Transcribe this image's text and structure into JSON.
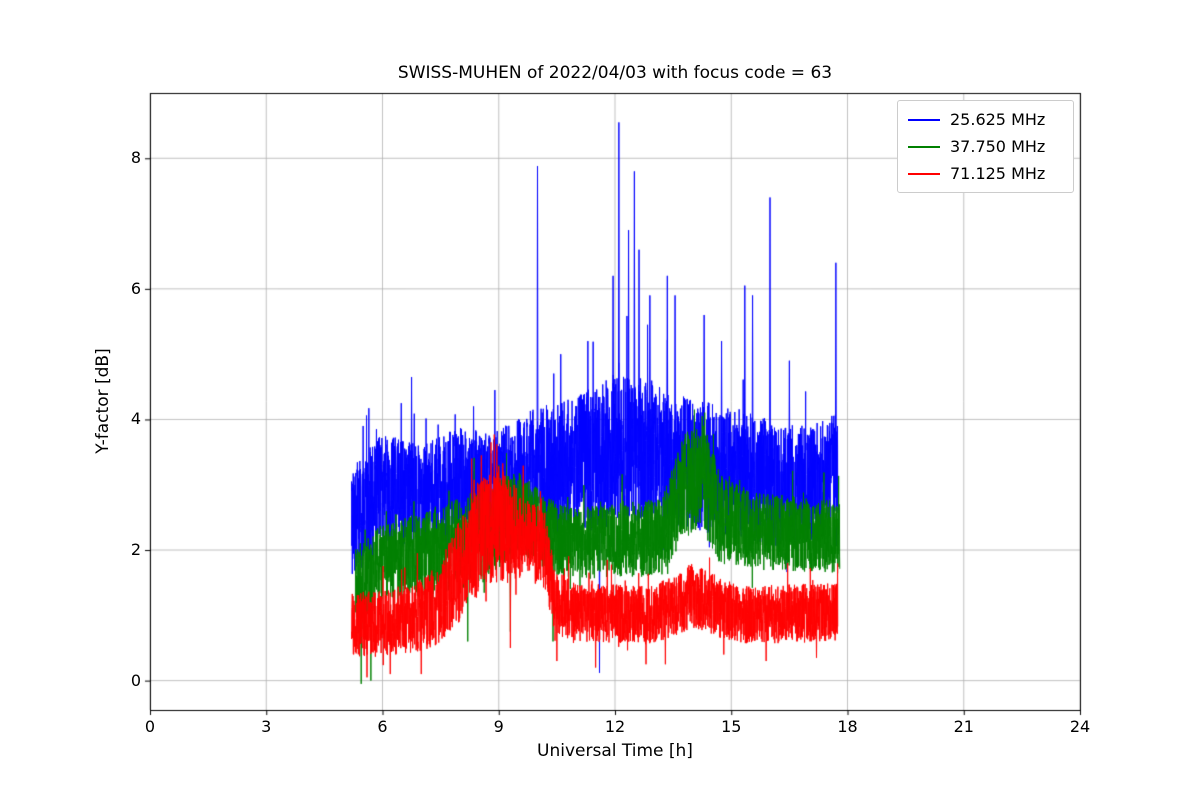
{
  "chart_data": {
    "type": "line",
    "title": "SWISS-MUHEN of 2022/04/03 with focus code = 63",
    "xlabel": "Universal Time [h]",
    "ylabel": "Y-factor [dB]",
    "xlim": [
      0,
      24
    ],
    "ylim": [
      -0.45,
      9.0
    ],
    "xticks": [
      0,
      3,
      6,
      9,
      12,
      15,
      18,
      21,
      24
    ],
    "yticks": [
      0,
      2,
      4,
      6,
      8
    ],
    "grid": true,
    "grid_color": "#b0b0b0",
    "background": "#ffffff",
    "legend": {
      "position": "upper right"
    },
    "series": [
      {
        "name": "25.625 MHz",
        "color": "#0000ff",
        "x_range": [
          5.2,
          17.75
        ],
        "envelope": [
          {
            "x": 5.2,
            "mean": 2.4,
            "spread": 0.85
          },
          {
            "x": 6.0,
            "mean": 2.9,
            "spread": 0.9
          },
          {
            "x": 7.0,
            "mean": 2.8,
            "spread": 0.8
          },
          {
            "x": 8.0,
            "mean": 3.0,
            "spread": 0.9
          },
          {
            "x": 9.0,
            "mean": 3.0,
            "spread": 0.85
          },
          {
            "x": 10.0,
            "mean": 3.2,
            "spread": 1.0
          },
          {
            "x": 11.0,
            "mean": 3.3,
            "spread": 1.05
          },
          {
            "x": 12.0,
            "mean": 3.5,
            "spread": 1.2
          },
          {
            "x": 13.0,
            "mean": 3.5,
            "spread": 1.1
          },
          {
            "x": 14.0,
            "mean": 3.3,
            "spread": 1.0
          },
          {
            "x": 15.0,
            "mean": 3.2,
            "spread": 1.0
          },
          {
            "x": 16.2,
            "mean": 3.0,
            "spread": 0.95
          },
          {
            "x": 17.0,
            "mean": 3.0,
            "spread": 0.9
          },
          {
            "x": 17.75,
            "mean": 3.2,
            "spread": 0.9
          }
        ],
        "spikes_up": [
          {
            "x": 5.5,
            "y": 3.9
          },
          {
            "x": 6.75,
            "y": 4.65
          },
          {
            "x": 8.35,
            "y": 4.2
          },
          {
            "x": 8.9,
            "y": 4.45
          },
          {
            "x": 10.0,
            "y": 7.88
          },
          {
            "x": 10.6,
            "y": 5.0
          },
          {
            "x": 11.3,
            "y": 5.2
          },
          {
            "x": 11.95,
            "y": 6.2
          },
          {
            "x": 12.1,
            "y": 8.55
          },
          {
            "x": 12.35,
            "y": 6.9
          },
          {
            "x": 12.5,
            "y": 7.8
          },
          {
            "x": 12.62,
            "y": 6.6
          },
          {
            "x": 12.9,
            "y": 5.9
          },
          {
            "x": 13.35,
            "y": 6.2
          },
          {
            "x": 13.55,
            "y": 5.9
          },
          {
            "x": 14.3,
            "y": 5.6
          },
          {
            "x": 14.75,
            "y": 5.2
          },
          {
            "x": 15.35,
            "y": 6.05
          },
          {
            "x": 15.55,
            "y": 5.9
          },
          {
            "x": 16.0,
            "y": 7.4
          },
          {
            "x": 16.5,
            "y": 4.9
          },
          {
            "x": 17.7,
            "y": 6.4
          }
        ],
        "spikes_down": [
          {
            "x": 11.6,
            "y": 0.12
          }
        ]
      },
      {
        "name": "37.750 MHz",
        "color": "#008000",
        "x_range": [
          5.3,
          17.8
        ],
        "envelope": [
          {
            "x": 5.3,
            "mean": 1.3,
            "spread": 0.75
          },
          {
            "x": 6.0,
            "mean": 1.8,
            "spread": 0.6
          },
          {
            "x": 7.5,
            "mean": 2.0,
            "spread": 0.65
          },
          {
            "x": 8.5,
            "mean": 2.2,
            "spread": 0.75
          },
          {
            "x": 9.5,
            "mean": 2.6,
            "spread": 0.6
          },
          {
            "x": 10.3,
            "mean": 2.2,
            "spread": 0.6
          },
          {
            "x": 11.0,
            "mean": 2.1,
            "spread": 0.55
          },
          {
            "x": 13.2,
            "mean": 2.2,
            "spread": 0.6
          },
          {
            "x": 13.8,
            "mean": 3.0,
            "spread": 0.8
          },
          {
            "x": 14.3,
            "mean": 3.1,
            "spread": 0.85
          },
          {
            "x": 14.7,
            "mean": 2.5,
            "spread": 0.7
          },
          {
            "x": 15.5,
            "mean": 2.3,
            "spread": 0.6
          },
          {
            "x": 17.8,
            "mean": 2.2,
            "spread": 0.55
          }
        ],
        "spikes_up": [
          {
            "x": 9.0,
            "y": 3.3
          },
          {
            "x": 14.05,
            "y": 4.15
          },
          {
            "x": 14.25,
            "y": 4.05
          }
        ],
        "spikes_down": [
          {
            "x": 5.45,
            "y": -0.05
          },
          {
            "x": 5.7,
            "y": 0.0
          },
          {
            "x": 8.2,
            "y": 0.6
          },
          {
            "x": 9.3,
            "y": 0.75
          },
          {
            "x": 10.4,
            "y": 0.6
          }
        ]
      },
      {
        "name": "71.125 MHz",
        "color": "#ff0000",
        "x_range": [
          5.2,
          17.75
        ],
        "envelope": [
          {
            "x": 5.2,
            "mean": 0.85,
            "spread": 0.5
          },
          {
            "x": 6.5,
            "mean": 0.9,
            "spread": 0.5
          },
          {
            "x": 7.4,
            "mean": 1.1,
            "spread": 0.6
          },
          {
            "x": 8.0,
            "mean": 1.7,
            "spread": 0.8
          },
          {
            "x": 8.6,
            "mean": 2.3,
            "spread": 0.9
          },
          {
            "x": 9.0,
            "mean": 2.4,
            "spread": 0.9
          },
          {
            "x": 9.6,
            "mean": 2.2,
            "spread": 0.65
          },
          {
            "x": 10.2,
            "mean": 2.0,
            "spread": 0.6
          },
          {
            "x": 10.45,
            "mean": 1.2,
            "spread": 0.5
          },
          {
            "x": 11.0,
            "mean": 1.05,
            "spread": 0.45
          },
          {
            "x": 13.0,
            "mean": 1.0,
            "spread": 0.45
          },
          {
            "x": 14.0,
            "mean": 1.3,
            "spread": 0.5
          },
          {
            "x": 15.2,
            "mean": 1.0,
            "spread": 0.45
          },
          {
            "x": 17.75,
            "mean": 1.05,
            "spread": 0.45
          }
        ],
        "spikes_up": [
          {
            "x": 6.9,
            "y": 1.95
          },
          {
            "x": 8.3,
            "y": 3.4
          },
          {
            "x": 8.55,
            "y": 3.45
          },
          {
            "x": 8.8,
            "y": 3.65
          },
          {
            "x": 8.95,
            "y": 3.62
          },
          {
            "x": 11.8,
            "y": 1.85
          }
        ],
        "spikes_down": [
          {
            "x": 5.6,
            "y": 0.05
          },
          {
            "x": 6.2,
            "y": 0.1
          },
          {
            "x": 7.0,
            "y": 0.1
          },
          {
            "x": 9.3,
            "y": 0.5
          },
          {
            "x": 10.5,
            "y": 0.3
          },
          {
            "x": 11.5,
            "y": 0.2
          },
          {
            "x": 12.8,
            "y": 0.25
          },
          {
            "x": 13.3,
            "y": 0.25
          },
          {
            "x": 15.9,
            "y": 0.3
          },
          {
            "x": 17.2,
            "y": 0.35
          }
        ]
      }
    ]
  }
}
